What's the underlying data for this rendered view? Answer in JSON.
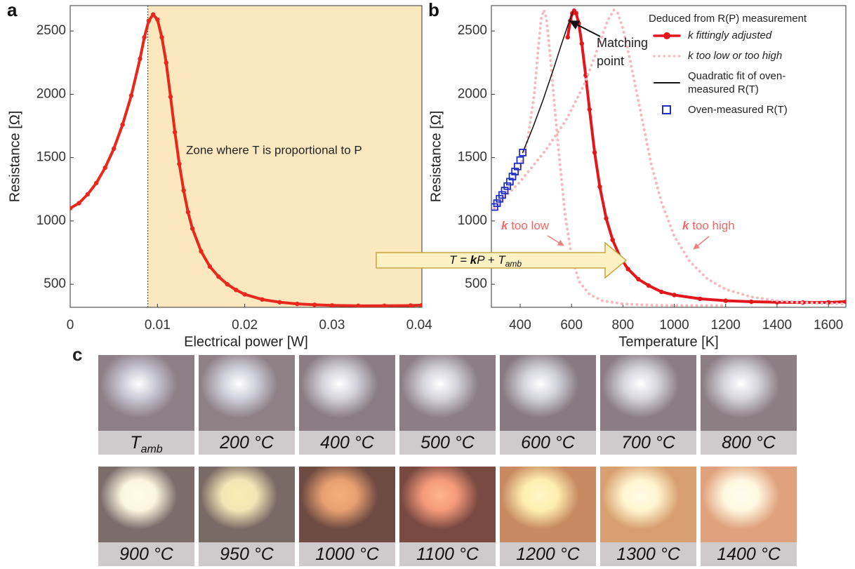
{
  "chart_data": [
    {
      "type": "line",
      "panel_label": "a",
      "xlabel": "Electrical power [W]",
      "ylabel": "Resistance [Ω]",
      "xlim": [
        0,
        0.0403
      ],
      "ylim": [
        318,
        2700
      ],
      "xticks": [
        0,
        0.01,
        0.02,
        0.03,
        0.04
      ],
      "yticks": [
        500,
        1000,
        1500,
        2000,
        2500
      ],
      "zone": {
        "start": 0.0089,
        "color": "#fbe8bf",
        "label": "Zone where T is proportional to P"
      },
      "series": [
        {
          "color": "#e8281c",
          "style": "line-dots",
          "x": [
            0,
            0.001,
            0.002,
            0.003,
            0.004,
            0.005,
            0.006,
            0.007,
            0.008,
            0.0085,
            0.009,
            0.0095,
            0.01,
            0.0105,
            0.011,
            0.0115,
            0.012,
            0.0125,
            0.013,
            0.0135,
            0.014,
            0.015,
            0.016,
            0.017,
            0.018,
            0.019,
            0.02,
            0.022,
            0.024,
            0.026,
            0.028,
            0.03,
            0.033,
            0.036,
            0.039,
            0.0403
          ],
          "values": [
            1100,
            1140,
            1210,
            1300,
            1420,
            1570,
            1760,
            1990,
            2280,
            2450,
            2580,
            2630,
            2590,
            2450,
            2250,
            1980,
            1700,
            1450,
            1240,
            1070,
            940,
            760,
            640,
            560,
            500,
            455,
            420,
            380,
            358,
            345,
            338,
            333,
            330,
            330,
            332,
            335
          ]
        }
      ]
    },
    {
      "type": "line",
      "panel_label": "b",
      "xlabel": "Temperature [K]",
      "ylabel": "Resistance [Ω]",
      "xlim": [
        288,
        1668
      ],
      "ylim": [
        318,
        2700
      ],
      "xticks": [
        400,
        600,
        800,
        1000,
        1200,
        1400,
        1600
      ],
      "yticks": [
        500,
        1000,
        1500,
        2000,
        2500
      ],
      "legend": {
        "title": "Deduced from R(P) measurement",
        "corner": "upper right"
      },
      "series": [
        {
          "name": "k fittingly adjusted",
          "color": "#e3161b",
          "style": "line-dots",
          "font_style": "italic",
          "x": [
            585,
            595,
            603,
            610,
            618,
            628,
            640,
            655,
            670,
            690,
            710,
            735,
            760,
            790,
            820,
            860,
            900,
            950,
            1000,
            1100,
            1200,
            1300,
            1400,
            1500,
            1600,
            1668
          ],
          "values": [
            2450,
            2580,
            2640,
            2660,
            2640,
            2560,
            2400,
            2150,
            1880,
            1540,
            1270,
            1020,
            850,
            710,
            620,
            540,
            490,
            440,
            415,
            385,
            370,
            362,
            358,
            356,
            357,
            362
          ]
        },
        {
          "name": "k too low or too high",
          "color": "#f5b9be",
          "style": "dotted",
          "font_style": "italic",
          "x": [
            300,
            350,
            400,
            430,
            455,
            470,
            482,
            492,
            502,
            515,
            530,
            550,
            575,
            600,
            630,
            670,
            720,
            800,
            900,
            1000,
            1200,
            null,
            300,
            400,
            500,
            580,
            650,
            700,
            740,
            765,
            780,
            800,
            830,
            870,
            910,
            950,
            1000,
            1060,
            1130,
            1200,
            1300,
            1400,
            1500,
            1668
          ],
          "values": [
            1100,
            1230,
            1420,
            1650,
            2000,
            2350,
            2600,
            2665,
            2600,
            2350,
            2000,
            1550,
            1050,
            720,
            520,
            420,
            370,
            345,
            335,
            332,
            332,
            null,
            1100,
            1310,
            1560,
            1800,
            2080,
            2350,
            2580,
            2665,
            2640,
            2520,
            2250,
            1850,
            1450,
            1150,
            880,
            680,
            540,
            460,
            400,
            370,
            355,
            345
          ]
        },
        {
          "name": "Quadratic fit of oven-measured R(T)",
          "color": "#111111",
          "style": "line",
          "x": [
            410,
            450,
            490,
            530,
            560,
            585,
            605
          ],
          "values": [
            1540,
            1740,
            1960,
            2200,
            2390,
            2540,
            2650
          ]
        },
        {
          "name": "Oven-measured R(T)",
          "color": "#1f2fc4",
          "style": "squares",
          "x": [
            300,
            310,
            320,
            330,
            340,
            350,
            360,
            370,
            380,
            390,
            400,
            410
          ],
          "values": [
            1110,
            1140,
            1175,
            1205,
            1240,
            1275,
            1310,
            1350,
            1390,
            1430,
            1480,
            1540
          ]
        }
      ],
      "annotations": {
        "matching_point": "Matching point",
        "k_too_low": {
          "emphasis": "k",
          "text": " too low"
        },
        "k_too_high": {
          "emphasis": "k",
          "text": " too high"
        },
        "formula": {
          "parts": [
            "T = ",
            "k",
            "P + T",
            "amb"
          ]
        }
      }
    }
  ],
  "photos": {
    "panel_label": "c",
    "rows": [
      [
        {
          "main": "T",
          "sub": "amb"
        },
        "200 °C",
        "400 °C",
        "500 °C",
        "600 °C",
        "700 °C",
        "800 °C"
      ],
      [
        "900 °C",
        "950 °C",
        "1000 °C",
        "1100 °C",
        "1200 °C",
        "1300 °C",
        "1400 °C"
      ]
    ]
  }
}
